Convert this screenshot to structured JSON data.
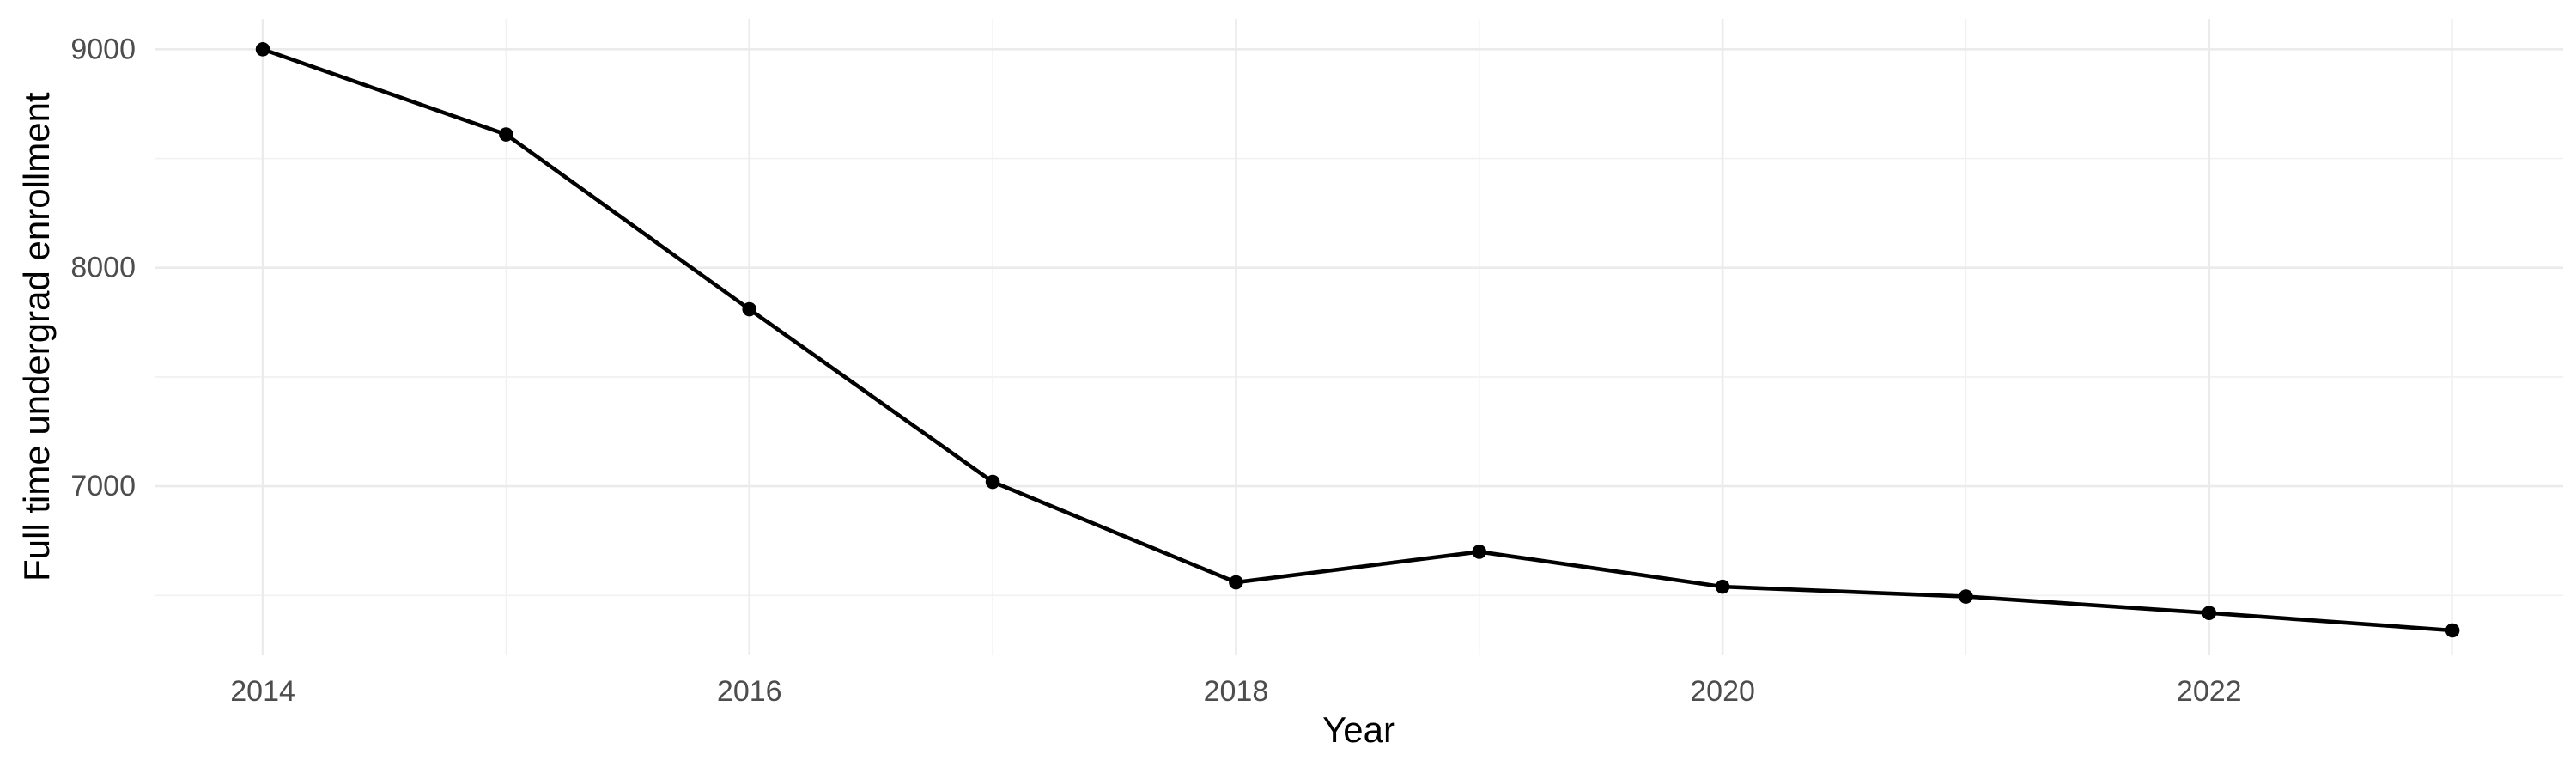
{
  "chart_data": {
    "type": "line",
    "xlabel": "Year",
    "ylabel": "Full time undergrad enrollment",
    "x": [
      2014,
      2015,
      2016,
      2017,
      2018,
      2019,
      2020,
      2021,
      2022,
      2023
    ],
    "series": [
      {
        "name": "Full time undergrad enrollment",
        "values": [
          9000,
          8610,
          7810,
          7020,
          6560,
          6700,
          6540,
          6495,
          6420,
          6340
        ]
      }
    ],
    "x_major_ticks": [
      2014,
      2016,
      2018,
      2020,
      2022
    ],
    "x_tick_labels": [
      "2014",
      "2016",
      "2018",
      "2020",
      "2022"
    ],
    "x_minor_gridlines": [
      2015,
      2017,
      2019,
      2021,
      2023
    ],
    "y_major_ticks": [
      9000,
      8000,
      7000
    ],
    "y_tick_labels": [
      "9000",
      "8000",
      "7000"
    ],
    "y_minor_gridlines": [
      8500,
      7500,
      6500
    ],
    "xlim": [
      2013.555,
      2023.455
    ],
    "ylim": [
      6226,
      9139
    ],
    "grid": true,
    "legend": false,
    "colors": {
      "line": "#000000",
      "point": "#000000",
      "grid_major": "#EBEBEB",
      "grid_minor": "#F1F1F1",
      "tick_label": "#4D4D4D",
      "axis_title": "#000000",
      "background": "#FFFFFF"
    }
  }
}
